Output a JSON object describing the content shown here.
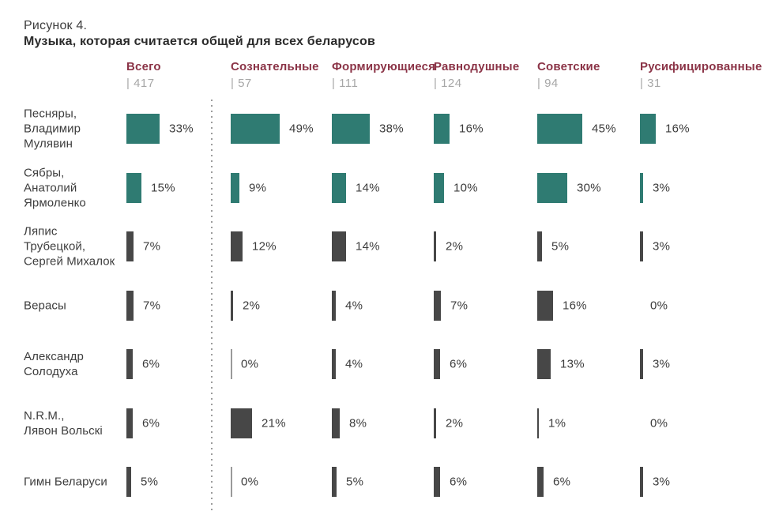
{
  "figure": {
    "label": "Рисунок 4.",
    "title": "Музыка, которая считается общей для всех беларусов"
  },
  "chart_data": {
    "type": "bar",
    "title": "Музыка, которая считается общей для всех беларусов",
    "unit": "%",
    "orientation": "horizontal",
    "grid": false,
    "legend_position": "none",
    "xlim": [
      0,
      55
    ],
    "categories": [
      "Песняры, Владимир Мулявин",
      "Сябры, Анатолий Ярмоленко",
      "Ляпис Трубецкой, Сергей Михалок",
      "Верасы",
      "Александр Солодуха",
      "N.R.M., Лявон Вольскі",
      "Гимн Беларуси"
    ],
    "category_lines": [
      [
        "Песняры,",
        "Владимир",
        "Мулявин"
      ],
      [
        "Сябры,",
        "Анатолий",
        "Ярмоленко"
      ],
      [
        "Ляпис",
        "Трубецкой,",
        "Сергей Михалок"
      ],
      [
        "Верасы"
      ],
      [
        "Александр",
        "Солодуха"
      ],
      [
        "N.R.M.,",
        "Лявон Вольскі"
      ],
      [
        "Гимн Беларуси"
      ]
    ],
    "series": [
      {
        "name": "Всего",
        "count": 417,
        "count_label": "| 417",
        "values": [
          33,
          15,
          7,
          7,
          6,
          6,
          5
        ]
      },
      {
        "name": "Сознательные",
        "count": 57,
        "count_label": "| 57",
        "values": [
          49,
          9,
          12,
          2,
          0,
          21,
          0
        ]
      },
      {
        "name": "Формирующиеся",
        "count": 111,
        "count_label": "| 111",
        "values": [
          38,
          14,
          14,
          4,
          4,
          8,
          5
        ]
      },
      {
        "name": "Равнодушные",
        "count": 124,
        "count_label": "| 124",
        "values": [
          16,
          10,
          2,
          7,
          6,
          2,
          6
        ]
      },
      {
        "name": "Советские",
        "count": 94,
        "count_label": "| 94",
        "values": [
          45,
          30,
          5,
          16,
          13,
          1,
          6
        ]
      },
      {
        "name": "Русифицированные",
        "count": 31,
        "count_label": "| 31",
        "values": [
          16,
          3,
          3,
          0,
          3,
          0,
          3
        ]
      }
    ],
    "teal_rows": [
      0,
      1
    ],
    "hide_zero_groups": [
      5
    ],
    "colors": {
      "teal": "#2F7B72",
      "dark": "#474747",
      "zero_line": "#9a9a9a",
      "header": "#8B3447",
      "count": "#a7a7a7",
      "label": "#3d3d3d",
      "value": "#3c3c3c"
    }
  }
}
